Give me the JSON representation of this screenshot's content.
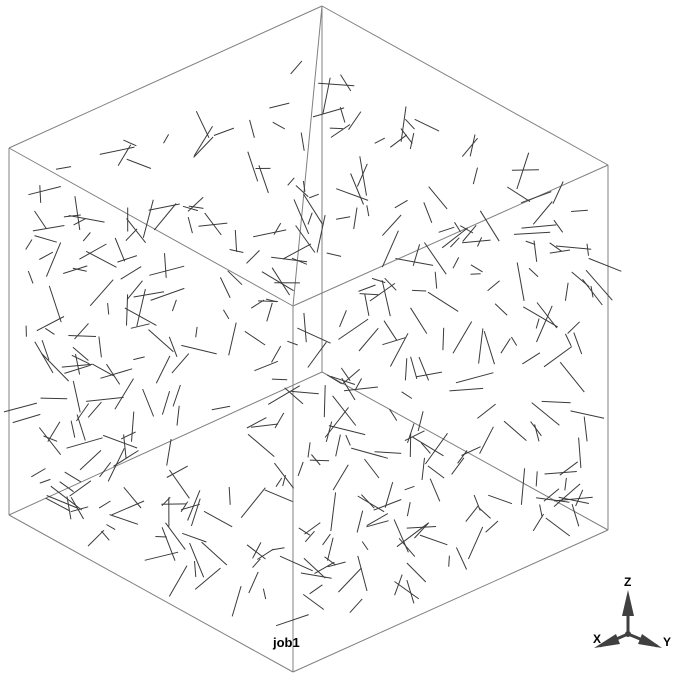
{
  "viewport": {
    "model_name": "job1",
    "box_color": "#808080",
    "fiber_color": "#3a3a3a",
    "background": "#ffffff"
  },
  "triad": {
    "labels": {
      "z": "Z",
      "x": "X",
      "y": "Y"
    },
    "arrow_color": "#404040"
  }
}
